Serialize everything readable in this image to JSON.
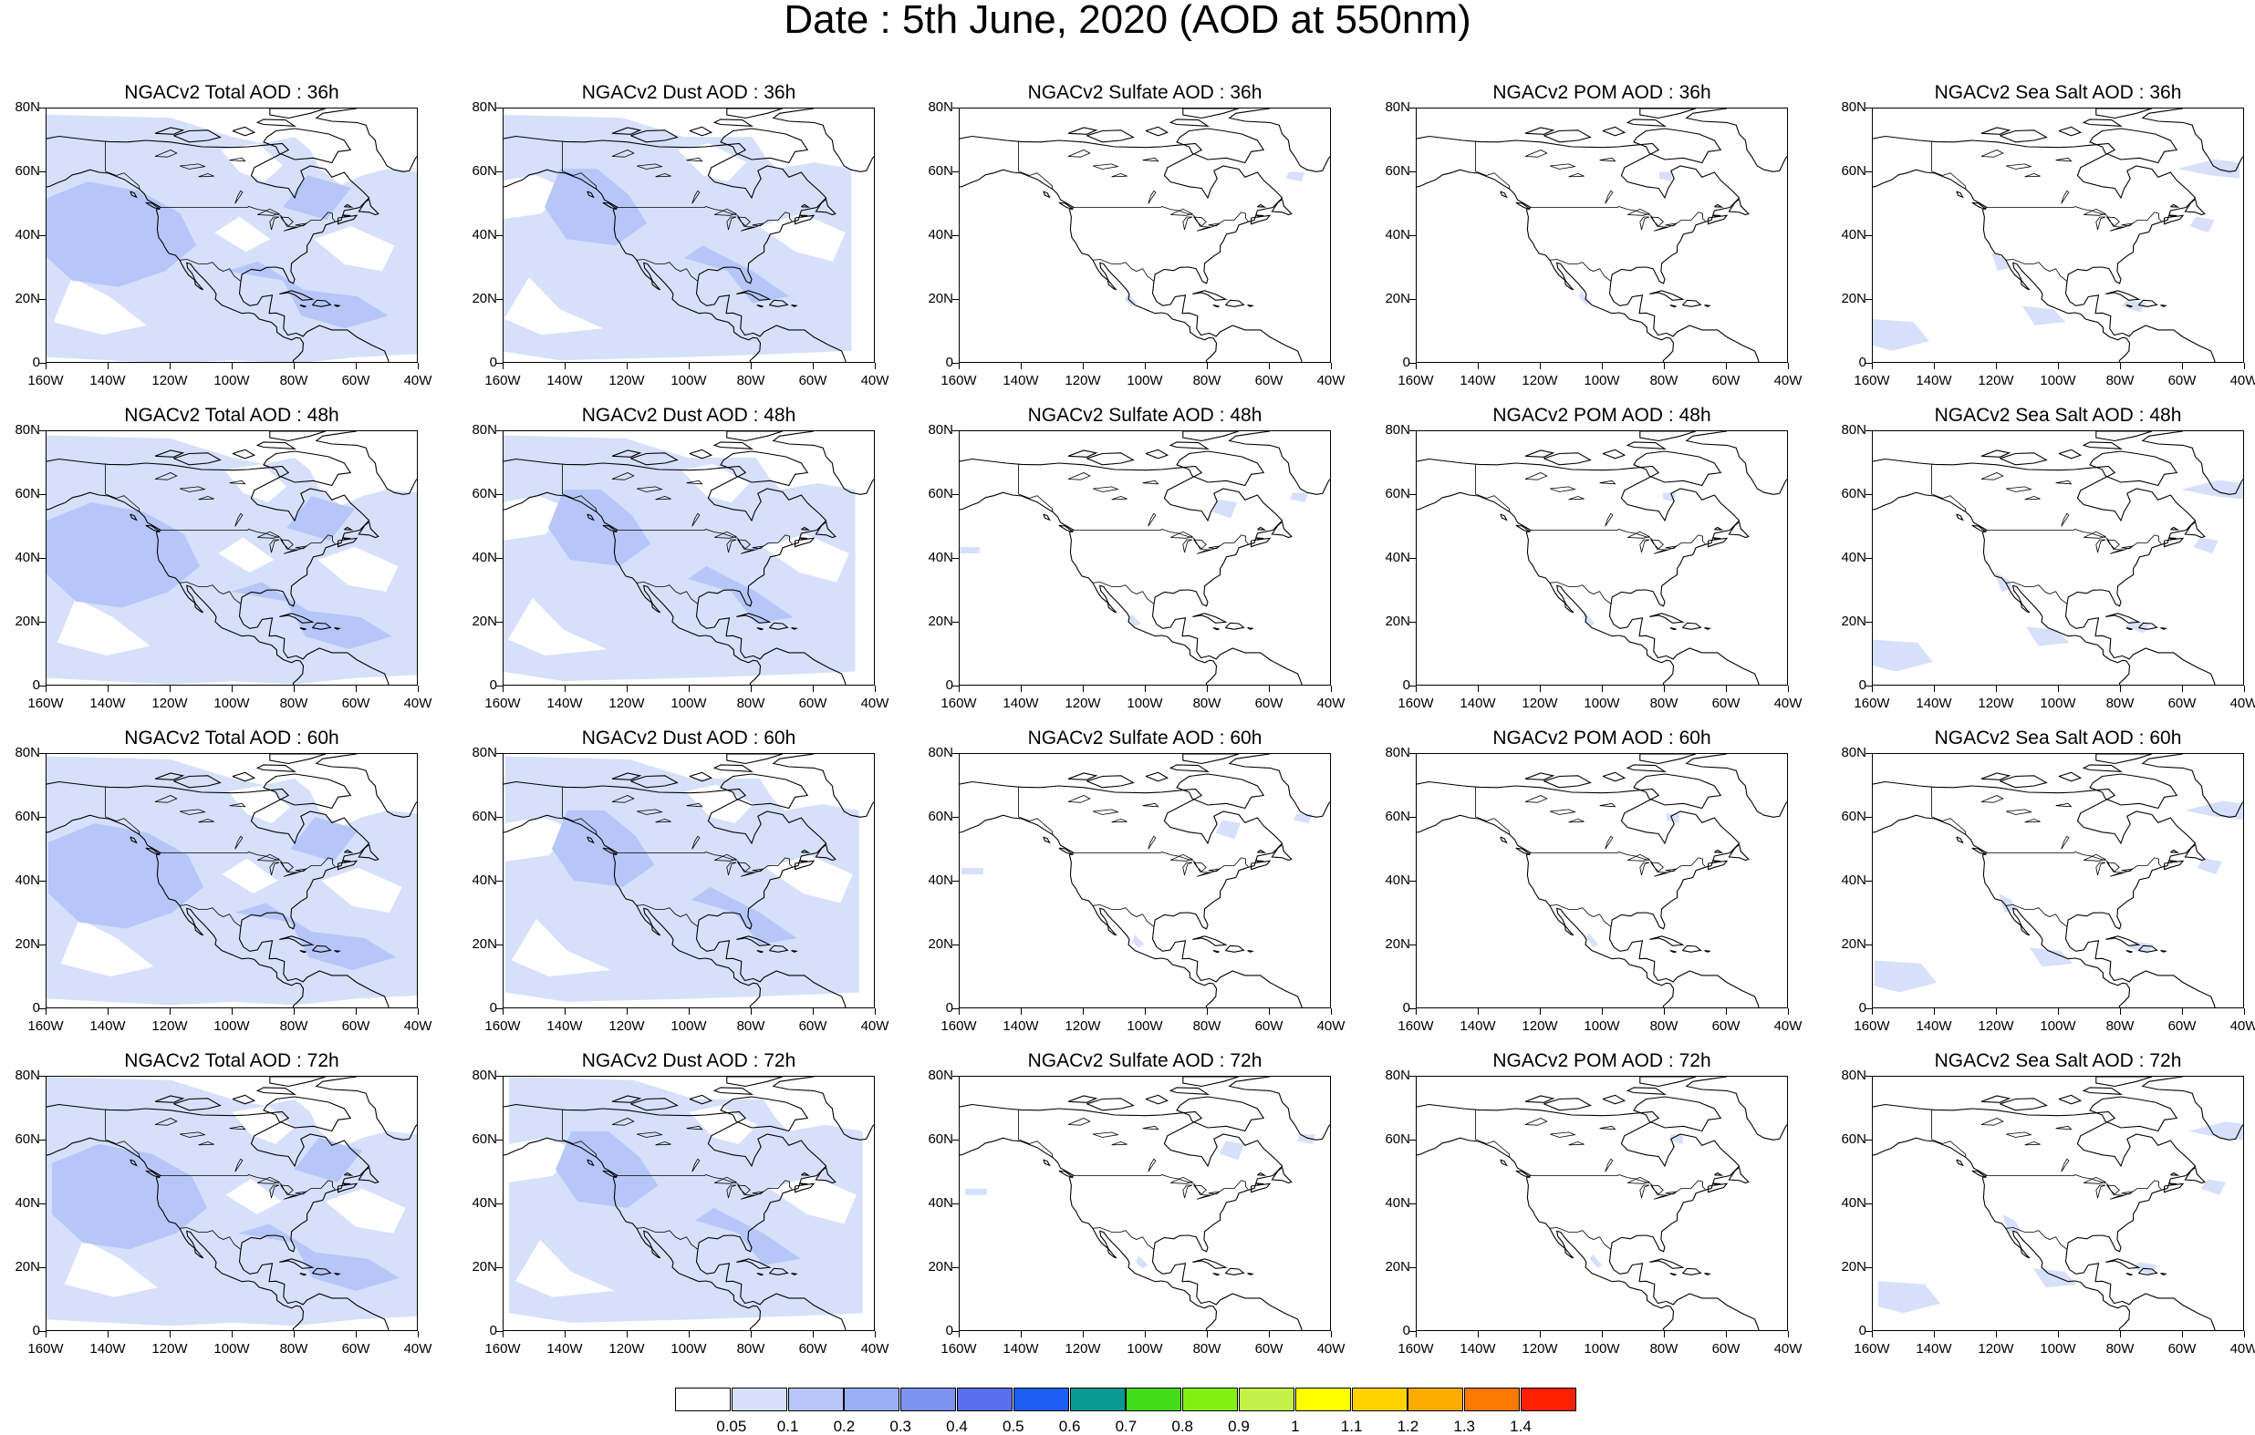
{
  "page_title": "Date : 5th June, 2020 (AOD at 550nm)",
  "axes": {
    "lat_labels": [
      "80N",
      "60N",
      "40N",
      "20N",
      "0"
    ],
    "lon_labels": [
      "160W",
      "140W",
      "120W",
      "100W",
      "80W",
      "60W",
      "40W"
    ],
    "lon_range": [
      -160,
      -40
    ],
    "lat_range": [
      0,
      80
    ]
  },
  "panels": [
    [
      "NGACv2 Total AOD : 36h",
      "NGACv2 Dust AOD : 36h",
      "NGACv2 Sulfate AOD : 36h",
      "NGACv2 POM AOD : 36h",
      "NGACv2 Sea Salt AOD : 36h"
    ],
    [
      "NGACv2 Total AOD : 48h",
      "NGACv2 Dust AOD : 48h",
      "NGACv2 Sulfate AOD : 48h",
      "NGACv2 POM AOD : 48h",
      "NGACv2 Sea Salt AOD : 48h"
    ],
    [
      "NGACv2 Total AOD : 60h",
      "NGACv2 Dust AOD : 60h",
      "NGACv2 Sulfate AOD : 60h",
      "NGACv2 POM AOD : 60h",
      "NGACv2 Sea Salt AOD : 60h"
    ],
    [
      "NGACv2 Total AOD : 72h",
      "NGACv2 Dust AOD : 72h",
      "NGACv2 Sulfate AOD : 72h",
      "NGACv2 POM AOD : 72h",
      "NGACv2 Sea Salt  AOD : 72h"
    ]
  ],
  "colorbar": {
    "colors": [
      "#ffffff",
      "#d6e0fb",
      "#b6c6f8",
      "#98aff5",
      "#7b93f1",
      "#5a6ef0",
      "#1e5ef5",
      "#0a9a93",
      "#42dc18",
      "#84f012",
      "#c4f048",
      "#ffff00",
      "#ffd200",
      "#ffaa00",
      "#ff7800",
      "#ff2000"
    ],
    "labels": [
      "0.05",
      "0.1",
      "0.2",
      "0.3",
      "0.4",
      "0.5",
      "0.6",
      "0.7",
      "0.8",
      "0.9",
      "1",
      "1.1",
      "1.2",
      "1.3",
      "1.4"
    ]
  }
}
